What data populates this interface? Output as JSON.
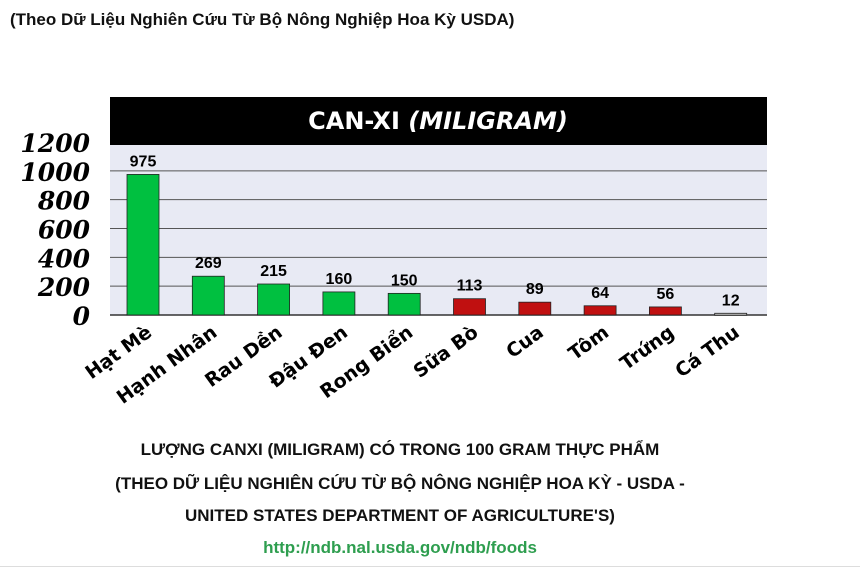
{
  "header_note": "(Theo Dữ Liệu Nghiên Cứu Từ Bộ Nông Nghiệp Hoa Kỳ USDA)",
  "chart_data": {
    "type": "bar",
    "title_main": "CAN-XI",
    "title_unit": "(MILIGRAM)",
    "categories": [
      "Hạt Mè",
      "Hạnh Nhân",
      "Rau Dền",
      "Đậu Đen",
      "Rong Biển",
      "Sữa Bò",
      "Cua",
      "Tôm",
      "Trứng",
      "Cá Thu"
    ],
    "values": [
      975,
      269,
      215,
      160,
      150,
      113,
      89,
      64,
      56,
      12
    ],
    "value_labels": [
      "975",
      "269",
      "215",
      "160",
      "150",
      "113",
      "89",
      "64",
      "56",
      "12"
    ],
    "bar_colors": [
      "#00c040",
      "#00c040",
      "#00c040",
      "#00c040",
      "#00c040",
      "#c01010",
      "#c01010",
      "#c01010",
      "#c01010",
      "#b8b8b8"
    ],
    "y_ticks": [
      0,
      200,
      400,
      600,
      800,
      1000,
      1200
    ],
    "ylim": [
      0,
      1200
    ],
    "grid": true,
    "colors": {
      "plot_bg": "#e8eaf4",
      "title_bg": "#000000",
      "grid": "#555555"
    }
  },
  "footer": {
    "line1": "LƯỢNG CANXI (MILIGRAM) CÓ TRONG 100 GRAM THỰC PHẨM",
    "line2": "(THEO DỮ LIỆU NGHIÊN CỨU TỪ BỘ NÔNG NGHIỆP HOA KỲ - USDA -",
    "line3": "UNITED STATES DEPARTMENT OF AGRICULTURE'S)",
    "url": "http://ndb.nal.usda.gov/ndb/foods",
    "url_color": "#2e9e4f"
  }
}
